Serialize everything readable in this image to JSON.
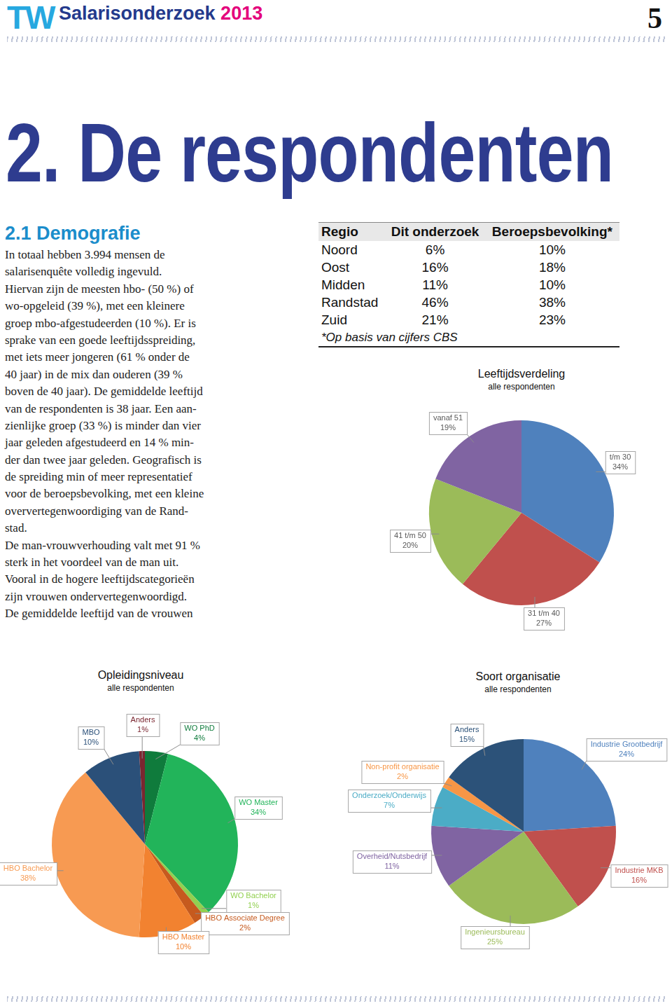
{
  "header": {
    "brand": "TW",
    "title": "Salarisonderzoek",
    "year": "2013",
    "page": "5"
  },
  "heading": "2. De respondenten",
  "section": {
    "title": "2.1 Demografie",
    "lines": [
      "In totaal hebben 3.994 mensen de",
      "salarisenquête volledig ingevuld.",
      "Hiervan zijn de meesten hbo- (50 %) of",
      "wo-opgeleid (39 %), met een kleinere",
      "groep mbo-afgestudeerden (10 %). Er is",
      "sprake van een goede leeftijdsspreiding,",
      "met iets meer jongeren (61 % onder de",
      "40 jaar) in de mix dan ouderen (39 %",
      "boven de 40 jaar). De gemiddelde leeftijd",
      "van de respondenten is 38 jaar. Een aan-",
      "zienlijke groep (33 %) is minder dan vier",
      "jaar geleden afgestudeerd en 14 % min-",
      "der dan twee jaar geleden. Geografisch is",
      "de spreiding min of meer representatief",
      "voor de beroepsbevolking, met een kleine",
      "oververtegenwoordiging van de Rand-",
      "stad.",
      "De man-vrouwverhouding valt met 91 %",
      "sterk in het voordeel van de man uit.",
      "Vooral in de hogere leeftijdscategorieën",
      "zijn vrouwen ondervertegenwoordigd.",
      "De gemiddelde leeftijd van de vrouwen"
    ]
  },
  "table": {
    "columns": [
      "Regio",
      "Dit onderzoek",
      "Beroepsbevolking*"
    ],
    "rows": [
      [
        "Noord",
        "6%",
        "10%"
      ],
      [
        "Oost",
        "16%",
        "18%"
      ],
      [
        "Midden",
        "11%",
        "10%"
      ],
      [
        "Randstad",
        "46%",
        "38%"
      ],
      [
        "Zuid",
        "21%",
        "23%"
      ]
    ],
    "note": "*Op basis van cijfers CBS"
  },
  "chart_data": [
    {
      "type": "pie",
      "title": "Leeftijdsverdeling",
      "subtitle": "alle respondenten",
      "categories": [
        "t/m 30",
        "31 t/m 40",
        "41 t/m 50",
        "vanaf 51"
      ],
      "values": [
        34,
        27,
        20,
        19
      ],
      "value_labels": [
        "34%",
        "27%",
        "20%",
        "19%"
      ],
      "colors": [
        "#4F81BD",
        "#C0504D",
        "#9BBB59",
        "#8064A2"
      ],
      "data_labels": true
    },
    {
      "type": "pie",
      "title": "Opleidingsniveau",
      "subtitle": "alle respondenten",
      "categories": [
        "WO PhD",
        "WO Master",
        "WO Bachelor",
        "HBO Associate Degree",
        "HBO Master",
        "HBO Bachelor",
        "MBO",
        "Anders"
      ],
      "values": [
        4,
        34,
        1,
        2,
        10,
        38,
        10,
        1
      ],
      "value_labels": [
        "4%",
        "34%",
        "1%",
        "2%",
        "10%",
        "38%",
        "10%",
        "1%"
      ],
      "colors": [
        "#0F7B3C",
        "#22B45A",
        "#92D050",
        "#C65A1E",
        "#F28230",
        "#F79A52",
        "#2B5079",
        "#7A2630"
      ],
      "data_labels": true
    },
    {
      "type": "pie",
      "title": "Soort organisatie",
      "subtitle": "alle respondenten",
      "categories": [
        "Industrie Grootbedrijf",
        "Industrie MKB",
        "Ingenieursbureau",
        "Overheid/Nutsbedrijf",
        "Onderzoek/Onderwijs",
        "Non-profit organisatie",
        "Anders"
      ],
      "values": [
        24,
        16,
        25,
        11,
        7,
        2,
        15
      ],
      "value_labels": [
        "24%",
        "16%",
        "25%",
        "11%",
        "7%",
        "2%",
        "15%"
      ],
      "colors": [
        "#4F81BD",
        "#C0504D",
        "#9BBB59",
        "#8064A2",
        "#4BACC6",
        "#F79646",
        "#2C5279"
      ],
      "data_labels": true
    }
  ]
}
